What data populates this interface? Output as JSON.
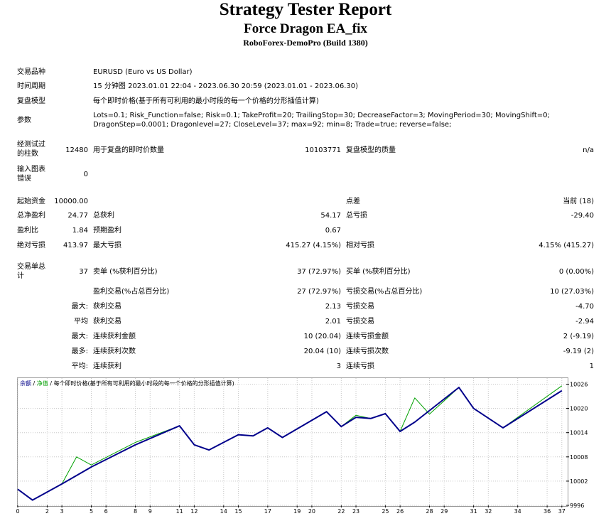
{
  "header": {
    "title": "Strategy Tester Report",
    "ea_name": "Force Dragon EA_fix",
    "server": "RoboForex-DemoPro (Build 1380)"
  },
  "settings": {
    "symbol_label": "交易品种",
    "symbol_value": "EURUSD (Euro vs US Dollar)",
    "period_label": "时间周期",
    "period_value": "15 分钟图 2023.01.01 22:04 - 2023.06.30 20:59 (2023.01.01 - 2023.06.30)",
    "model_label": "复盘模型",
    "model_value": "每个即时价格(基于所有可利用的最小时段的每一个价格的分形插值计算)",
    "params_label": "参数",
    "params_line1": "Lots=0.1; Risk_Function=false; Risk=0.1; TakeProfit=20; TrailingStop=30; DecreaseFactor=3; MovingPeriod=30; MovingShift=0;",
    "params_line2": "DragonStep=0.0001; Dragonlevel=27; CloseLevel=37; max=92; min=8; Trade=true; reverse=false;"
  },
  "bars": {
    "label_line1": "经测试过",
    "label_line2": "的柱数",
    "bars_value": "12480",
    "ticks_label": "用于复盘的即时价数量",
    "ticks_value": "10103771",
    "quality_label": "复盘模型的质量",
    "quality_value": "n/a",
    "errors_label_line1": "输入图表",
    "errors_label_line2": "错误",
    "errors_value": "0"
  },
  "results": {
    "deposit_label": "起始资金",
    "deposit_value": "10000.00",
    "spread_label": "点差",
    "spread_value": "当前 (18)",
    "net_label": "总净盈利",
    "net_value": "24.77",
    "gross_profit_label": "总获利",
    "gross_profit_value": "54.17",
    "gross_loss_label": "总亏损",
    "gross_loss_value": "-29.40",
    "pf_label": "盈利比",
    "pf_value": "1.84",
    "expected_label": "预期盈利",
    "expected_value": "0.67",
    "abs_dd_label": "绝对亏损",
    "abs_dd_value": "413.97",
    "max_dd_label": "最大亏损",
    "max_dd_value": "415.27 (4.15%)",
    "rel_dd_label": "相对亏损",
    "rel_dd_value": "4.15% (415.27)"
  },
  "trades": {
    "total_label_line1": "交易单总",
    "total_label_line2": "计",
    "total_value": "37",
    "short_label": "卖单 (%获利百分比)",
    "short_value": "37 (72.97%)",
    "long_label": "买单 (%获利百分比)",
    "long_value": "0 (0.00%)",
    "profit_trades_label": "盈利交易(%占总百分比)",
    "profit_trades_value": "27 (72.97%)",
    "loss_trades_label": "亏损交易(%占总百分比)",
    "loss_trades_value": "10 (27.03%)",
    "largest_prefix": "最大:",
    "largest_profit_label": "获利交易",
    "largest_profit_value": "2.13",
    "largest_loss_label": "亏损交易",
    "largest_loss_value": "-4.70",
    "average_prefix": "平均",
    "average_profit_label": "获利交易",
    "average_profit_value": "2.01",
    "average_loss_label": "亏损交易",
    "average_loss_value": "-2.94",
    "max_consec_prefix": "最大:",
    "max_consec_wins_label": "连续获利金额",
    "max_consec_wins_value": "10 (20.04)",
    "max_consec_losses_label": "连续亏损金额",
    "max_consec_losses_value": "2 (-9.19)",
    "most_prefix": "最多:",
    "most_consec_profit_label": "连续获利次数",
    "most_consec_profit_value": "20.04 (10)",
    "most_consec_loss_label": "连续亏损次数",
    "most_consec_loss_value": "-9.19 (2)",
    "avg_consec_prefix": "平均:",
    "avg_consec_wins_label": "连续获利",
    "avg_consec_wins_value": "3",
    "avg_consec_losses_label": "连续亏损",
    "avg_consec_losses_value": "1"
  },
  "chart_legend": {
    "balance": "余额",
    "sep1": " / ",
    "equity": "净值",
    "sep2": " / ",
    "model": "每个即时价格(基于所有可利用的最小时段的每一个价格的分形插值计算)"
  },
  "colors": {
    "balance": "#00008b",
    "equity": "#00a000",
    "grid": "#c8c8c8",
    "frame": "#9a9a9a"
  },
  "chart_data": {
    "type": "line",
    "x_ticks": [
      0,
      2,
      3,
      5,
      6,
      8,
      9,
      11,
      12,
      14,
      15,
      17,
      19,
      20,
      22,
      23,
      25,
      26,
      28,
      29,
      31,
      32,
      34,
      36,
      37
    ],
    "y_ticks": [
      9996,
      10002,
      10008,
      10014,
      10020,
      10026
    ],
    "xlim": [
      0,
      37.3
    ],
    "ylim": [
      9996,
      10027.5
    ],
    "grid": true,
    "series": [
      {
        "name": "余额",
        "x": [
          0,
          1,
          3,
          5,
          8,
          11,
          12,
          13,
          15,
          16,
          17,
          18,
          21,
          22,
          23,
          24,
          25,
          26,
          27,
          30,
          31,
          33,
          37
        ],
        "y": [
          10000.0,
          9997.3,
          10001.3,
          10005.5,
          10011.0,
          10015.7,
          10011.0,
          10009.7,
          10013.5,
          10013.2,
          10015.2,
          10012.8,
          10019.2,
          10015.5,
          10017.8,
          10017.5,
          10018.7,
          10014.3,
          10016.6,
          10025.2,
          10020.0,
          10015.2,
          10024.4
        ]
      },
      {
        "name": "净值",
        "x": [
          0,
          1,
          3,
          4,
          5,
          8,
          11,
          12,
          13,
          15,
          16,
          17,
          18,
          21,
          22,
          23,
          24,
          25,
          26,
          27,
          28,
          30,
          31,
          33,
          37
        ],
        "y": [
          10000.0,
          9997.3,
          10001.3,
          10008.0,
          10006.0,
          10011.6,
          10015.7,
          10011.0,
          10009.7,
          10013.5,
          10013.2,
          10015.2,
          10012.8,
          10019.2,
          10015.5,
          10018.3,
          10017.5,
          10018.7,
          10014.3,
          10022.6,
          10018.6,
          10025.2,
          10020.0,
          10015.2,
          10025.6
        ]
      }
    ]
  }
}
